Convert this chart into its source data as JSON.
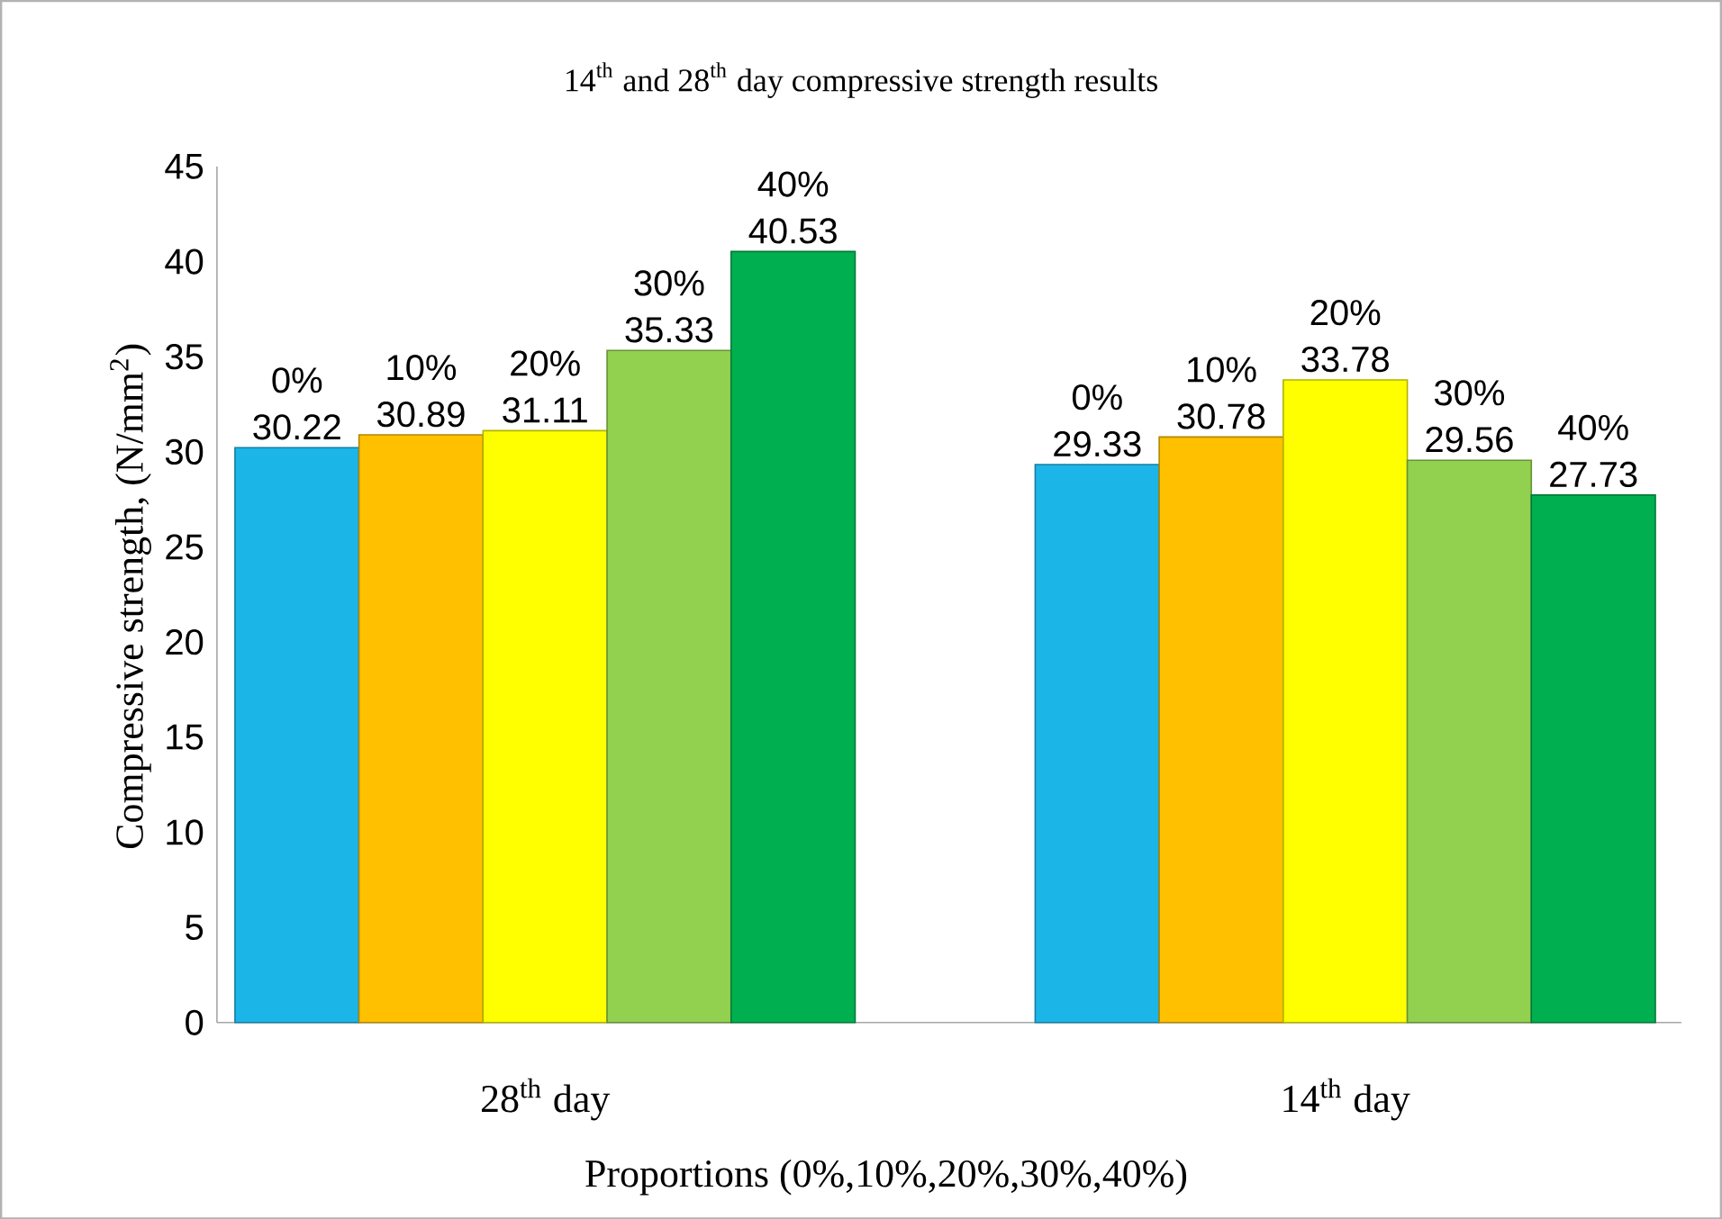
{
  "chart_data": {
    "type": "bar",
    "title": "14$^{th}$ and 28$^{th}$ day compressive strength results",
    "xlabel": "Proportions (0%,10%,20%,30%,40%)",
    "ylabel": "Compressive strength, (N/mm$^{2}$)",
    "categories": [
      "28$^{th}$ day",
      "14$^{th}$ day"
    ],
    "series": [
      {
        "name": "0%",
        "color": "#1cb5e8",
        "values": [
          30.22,
          29.33
        ]
      },
      {
        "name": "10%",
        "color": "#ffc000",
        "values": [
          30.89,
          30.78
        ]
      },
      {
        "name": "20%",
        "color": "#ffff00",
        "values": [
          31.11,
          33.78
        ]
      },
      {
        "name": "30%",
        "color": "#92d050",
        "values": [
          35.33,
          29.56
        ]
      },
      {
        "name": "40%",
        "color": "#00b050",
        "values": [
          40.53,
          27.73
        ]
      }
    ],
    "ylim": [
      0,
      45
    ],
    "yticks": [
      0,
      5,
      10,
      15,
      20,
      25,
      30,
      35,
      40,
      45
    ],
    "grid": false,
    "legend": false,
    "data_labels": true
  }
}
